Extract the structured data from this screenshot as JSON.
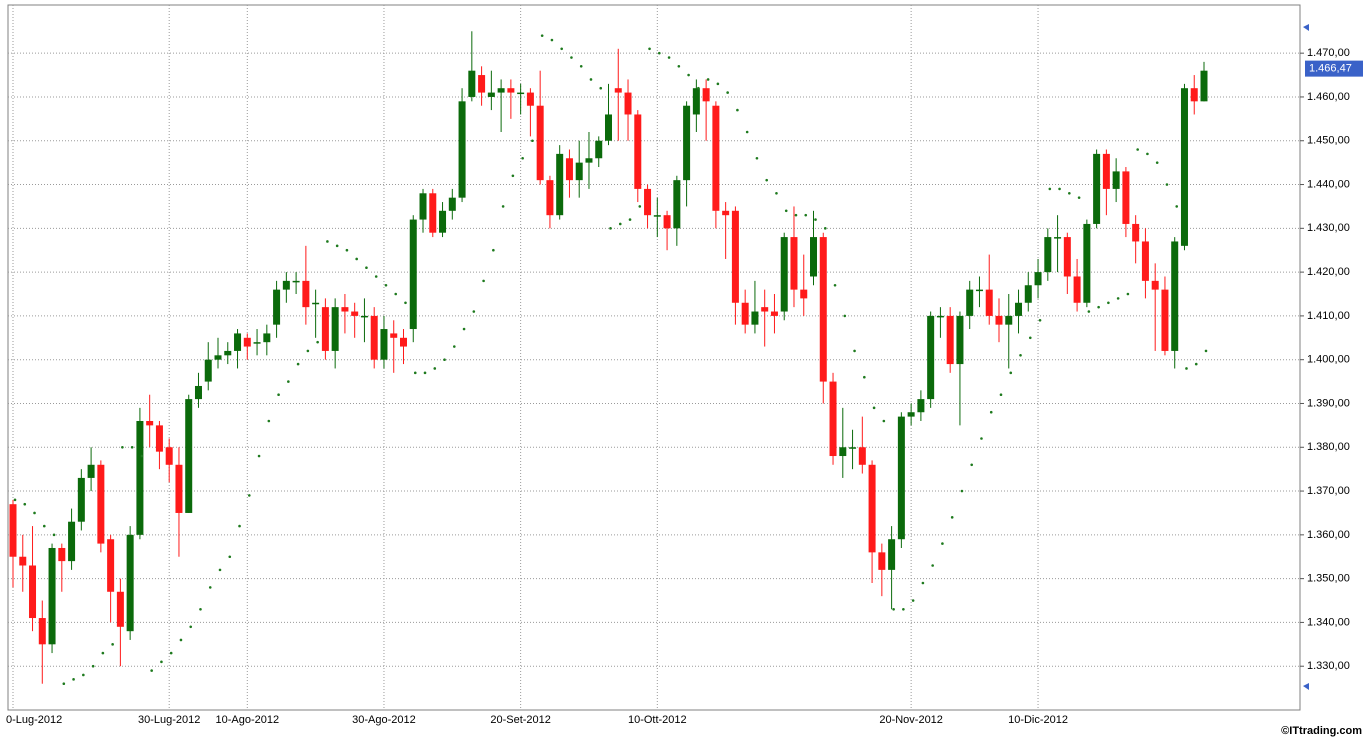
{
  "chart_data": {
    "type": "candlestick",
    "up_color": "#0b6a0b",
    "down_color": "#ff1a1a",
    "grid": true,
    "categories": [
      "0-Lug-2012",
      null,
      null,
      null,
      null,
      null,
      null,
      null,
      null,
      null,
      null,
      null,
      null,
      null,
      null,
      null,
      "30-Lug-2012",
      null,
      null,
      null,
      null,
      null,
      null,
      null,
      "10-Ago-2012",
      null,
      null,
      null,
      null,
      null,
      null,
      null,
      null,
      null,
      null,
      null,
      null,
      null,
      "30-Ago-2012",
      null,
      null,
      null,
      null,
      null,
      null,
      null,
      null,
      null,
      null,
      null,
      null,
      null,
      "20-Set-2012",
      null,
      null,
      null,
      null,
      null,
      null,
      null,
      null,
      null,
      null,
      null,
      null,
      null,
      "10-Ott-2012",
      null,
      null,
      null,
      null,
      null,
      null,
      null,
      null,
      null,
      null,
      null,
      null,
      null,
      null,
      null,
      null,
      null,
      null,
      null,
      null,
      null,
      null,
      null,
      null,
      null,
      "20-Nov-2012",
      null,
      null,
      null,
      null,
      null,
      null,
      null,
      null,
      null,
      null,
      null,
      null,
      "10-Dic-2012",
      null,
      null,
      null,
      null,
      null,
      null,
      null,
      null,
      null,
      null,
      null,
      null,
      null,
      null,
      null,
      null,
      null
    ],
    "open": [
      1367,
      1355,
      1353,
      1341,
      1335,
      1357,
      1354,
      1363,
      1373,
      1376,
      1359,
      1347,
      1338,
      1360,
      1386,
      1385,
      1380,
      1376,
      1365,
      1391,
      1395,
      1400,
      1401,
      1402,
      1405,
      1404,
      1404,
      1408,
      1416,
      1418,
      1418,
      1413,
      1412,
      1402,
      1412,
      1411,
      1410,
      1410,
      1400,
      1406,
      1405,
      1407,
      1432,
      1438,
      1429,
      1434,
      1437,
      1460,
      1465,
      1460,
      1461,
      1462,
      1461,
      1461,
      1458,
      1441,
      1433,
      1446,
      1441,
      1445,
      1446,
      1450,
      1462,
      1461,
      1456,
      1439,
      1433,
      1433,
      1430,
      1441,
      1456,
      1462,
      1458,
      1434,
      1434,
      1413,
      1408,
      1412,
      1411,
      1411,
      1428,
      1416,
      1419,
      1428,
      1395,
      1378,
      1380,
      1380,
      1376,
      1356,
      1352,
      1359,
      1387,
      1388,
      1391,
      1410,
      1410,
      1399,
      1410,
      1416,
      1416,
      1410,
      1408,
      1410,
      1413,
      1417,
      1420,
      1428,
      1428,
      1419,
      1413,
      1431,
      1447,
      1439,
      1443,
      1431,
      1427,
      1418,
      1416,
      1402,
      1426,
      1462,
      1459
    ],
    "high": [
      1368,
      1360,
      1362,
      1345,
      1358,
      1358,
      1366,
      1375,
      1380,
      1377,
      1360,
      1350,
      1362,
      1389,
      1392,
      1386,
      1382,
      1380,
      1392,
      1397,
      1404,
      1405,
      1404,
      1407,
      1406,
      1407,
      1408,
      1418,
      1420,
      1420,
      1426,
      1416,
      1414,
      1414,
      1415,
      1413,
      1414,
      1412,
      1410,
      1409,
      1407,
      1433,
      1439,
      1439,
      1436,
      1439,
      1462,
      1475,
      1467,
      1466,
      1464,
      1464,
      1463,
      1462,
      1466,
      1442,
      1449,
      1448,
      1450,
      1452,
      1451,
      1463,
      1471,
      1464,
      1457,
      1440,
      1437,
      1434,
      1442,
      1459,
      1464,
      1464,
      1459,
      1436,
      1435,
      1416,
      1418,
      1416,
      1415,
      1429,
      1435,
      1424,
      1434,
      1429,
      1397,
      1389,
      1384,
      1387,
      1377,
      1358,
      1362,
      1388,
      1390,
      1393,
      1411,
      1412,
      1412,
      1411,
      1418,
      1419,
      1424,
      1414,
      1415,
      1416,
      1420,
      1423,
      1430,
      1433,
      1429,
      1423,
      1432,
      1448,
      1448,
      1446,
      1444,
      1433,
      1430,
      1422,
      1419,
      1428,
      1463,
      1465,
      1468
    ],
    "low": [
      1348,
      1347,
      1338,
      1326,
      1333,
      1347,
      1352,
      1361,
      1370,
      1356,
      1340,
      1330,
      1336,
      1359,
      1380,
      1375,
      1372,
      1355,
      1365,
      1389,
      1393,
      1398,
      1399,
      1398,
      1400,
      1401,
      1401,
      1405,
      1413,
      1415,
      1408,
      1405,
      1400,
      1398,
      1406,
      1405,
      1404,
      1398,
      1398,
      1397,
      1399,
      1404,
      1429,
      1428,
      1428,
      1432,
      1436,
      1459,
      1458,
      1457,
      1452,
      1455,
      1456,
      1451,
      1440,
      1430,
      1432,
      1437,
      1437,
      1439,
      1444,
      1449,
      1450,
      1450,
      1436,
      1430,
      1428,
      1425,
      1426,
      1435,
      1452,
      1450,
      1430,
      1423,
      1408,
      1406,
      1406,
      1403,
      1406,
      1409,
      1412,
      1410,
      1417,
      1390,
      1376,
      1373,
      1375,
      1374,
      1349,
      1346,
      1343,
      1357,
      1385,
      1386,
      1389,
      1405,
      1397,
      1385,
      1407,
      1412,
      1408,
      1404,
      1398,
      1406,
      1411,
      1414,
      1418,
      1420,
      1415,
      1411,
      1412,
      1430,
      1433,
      1436,
      1428,
      1422,
      1414,
      1402,
      1401,
      1398,
      1425,
      1456,
      1459
    ],
    "close": [
      1355,
      1353,
      1341,
      1335,
      1357,
      1354,
      1363,
      1373,
      1376,
      1358,
      1347,
      1339,
      1360,
      1386,
      1385,
      1379,
      1376,
      1365,
      1391,
      1394,
      1400,
      1401,
      1402,
      1406,
      1403,
      1404,
      1406,
      1416,
      1418,
      1418,
      1412,
      1413,
      1402,
      1412,
      1411,
      1410,
      1410,
      1400,
      1407,
      1405,
      1403,
      1432,
      1438,
      1429,
      1434,
      1437,
      1459,
      1466,
      1461,
      1461,
      1462,
      1461,
      1461,
      1458,
      1441,
      1433,
      1447,
      1441,
      1445,
      1446,
      1450,
      1456,
      1461,
      1456,
      1439,
      1433,
      1433,
      1430,
      1441,
      1458,
      1462,
      1459,
      1434,
      1433,
      1413,
      1408,
      1411,
      1411,
      1410,
      1428,
      1416,
      1414,
      1428,
      1395,
      1378,
      1380,
      1380,
      1376,
      1356,
      1352,
      1359,
      1387,
      1388,
      1391,
      1410,
      1410,
      1399,
      1410,
      1416,
      1416,
      1410,
      1408,
      1410,
      1413,
      1417,
      1420,
      1428,
      1428,
      1419,
      1413,
      1431,
      1447,
      1439,
      1443,
      1431,
      1427,
      1418,
      1416,
      1402,
      1427,
      1462,
      1459,
      1466
    ],
    "sar": {
      "color": "#1e7a1e",
      "values": [
        1368,
        1367,
        1365,
        1362,
        1360,
        1326,
        1327,
        1328,
        1330,
        1333,
        1335,
        1380,
        1380,
        1378,
        1329,
        1331,
        1333,
        1336,
        1339,
        1343,
        1348,
        1352,
        1355,
        1362,
        1369,
        1378,
        1386,
        1392,
        1395,
        1399,
        1402,
        1404,
        1427,
        1426,
        1425,
        1423,
        1421,
        1419,
        1417,
        1415,
        1413,
        1397,
        1397,
        1398,
        1400,
        1403,
        1407,
        1411,
        1418,
        1425,
        1435,
        1442,
        1446,
        1450,
        1474,
        1473,
        1471,
        1469,
        1467,
        1464,
        1462,
        1430,
        1431,
        1432,
        1435,
        1471,
        1470,
        1469,
        1467,
        1465,
        1462,
        1464,
        1463,
        1461,
        1457,
        1452,
        1446,
        1441,
        1438,
        1434,
        1433,
        1433,
        1432,
        1430,
        1417,
        1410,
        1402,
        1396,
        1389,
        1386,
        1343,
        1343,
        1345,
        1349,
        1353,
        1358,
        1364,
        1370,
        1376,
        1382,
        1388,
        1392,
        1397,
        1401,
        1405,
        1409,
        1439,
        1439,
        1438,
        1437,
        1411,
        1412,
        1413,
        1414,
        1415,
        1448,
        1447,
        1445,
        1440,
        1435,
        1398,
        1399,
        1402
      ]
    },
    "ylim": [
      1320,
      1481
    ],
    "yticks": [
      {
        "value": 1330,
        "label": "1.330,00"
      },
      {
        "value": 1340,
        "label": "1.340,00"
      },
      {
        "value": 1350,
        "label": "1.350,00"
      },
      {
        "value": 1360,
        "label": "1.360,00"
      },
      {
        "value": 1370,
        "label": "1.370,00"
      },
      {
        "value": 1380,
        "label": "1.380,00"
      },
      {
        "value": 1390,
        "label": "1.390,00"
      },
      {
        "value": 1400,
        "label": "1.400,00"
      },
      {
        "value": 1410,
        "label": "1.410,00"
      },
      {
        "value": 1420,
        "label": "1.420,00"
      },
      {
        "value": 1430,
        "label": "1.430,00"
      },
      {
        "value": 1440,
        "label": "1.440,00"
      },
      {
        "value": 1450,
        "label": "1.450,00"
      },
      {
        "value": 1460,
        "label": "1.460,00"
      },
      {
        "value": 1470,
        "label": "1.470,00"
      }
    ],
    "last_price": {
      "value": 1466.47,
      "label": "1.466,47"
    },
    "source": "©ITtrading.com"
  }
}
